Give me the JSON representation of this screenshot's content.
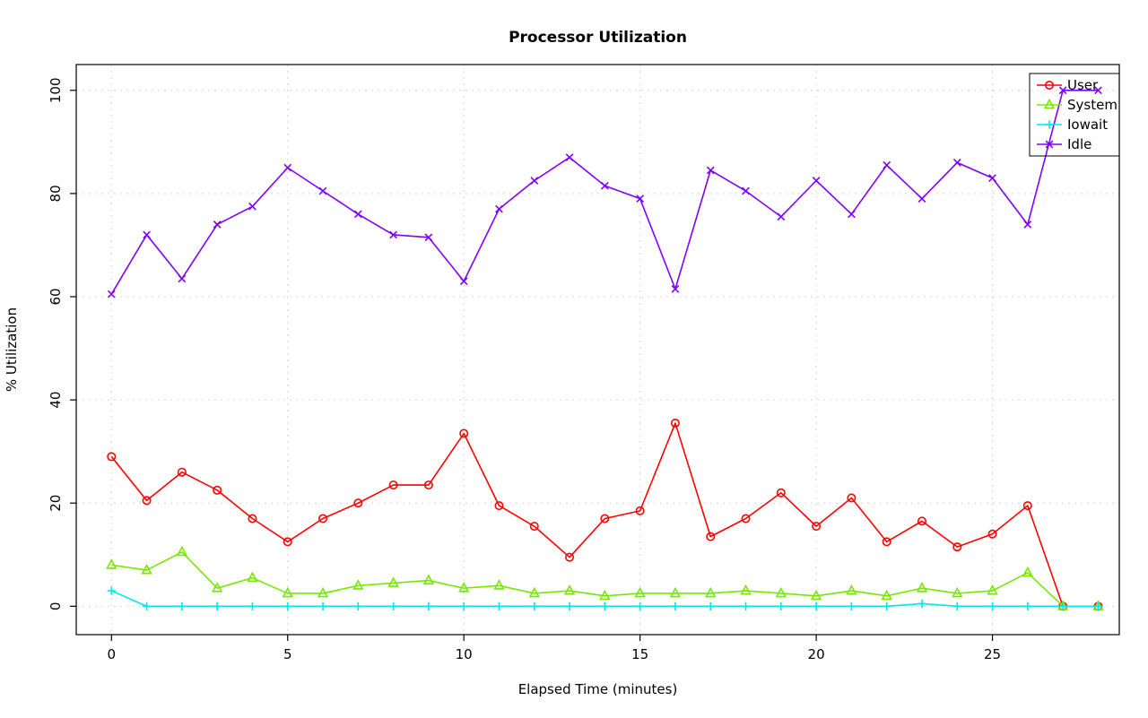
{
  "title": "Processor Utilization",
  "axes": {
    "x_label": "Elapsed Time (minutes)",
    "y_label": "% Utilization",
    "x_ticks": [
      0,
      5,
      10,
      15,
      20,
      25
    ],
    "y_ticks": [
      0,
      20,
      40,
      60,
      80,
      100
    ]
  },
  "legend": {
    "position": "top-right",
    "entries": [
      {
        "label": "User",
        "color": "#FF0000",
        "marker": "circle"
      },
      {
        "label": "System",
        "color": "#76E800",
        "marker": "triangle-up"
      },
      {
        "label": "Iowait",
        "color": "#00E5EE",
        "marker": "plus"
      },
      {
        "label": "Idle",
        "color": "#8000FF",
        "marker": "x"
      }
    ]
  },
  "chart_data": {
    "type": "line",
    "title": "Processor Utilization",
    "xlabel": "Elapsed Time (minutes)",
    "ylabel": "% Utilization",
    "xlim": [
      0,
      28
    ],
    "ylim": [
      0,
      100
    ],
    "grid": true,
    "legend_position": "top-right",
    "x": [
      0,
      1,
      2,
      3,
      4,
      5,
      6,
      7,
      8,
      9,
      10,
      11,
      12,
      13,
      14,
      15,
      16,
      17,
      18,
      19,
      20,
      21,
      22,
      23,
      24,
      25,
      26,
      27,
      28
    ],
    "series": [
      {
        "name": "User",
        "color": "#FF0000",
        "marker": "circle",
        "values": [
          29,
          20.5,
          26,
          22.5,
          17,
          12.5,
          17,
          20,
          23.5,
          23.5,
          33.5,
          19.5,
          15.5,
          9.5,
          17,
          18.5,
          35.5,
          13.5,
          17,
          22,
          15.5,
          21,
          12.5,
          16.5,
          11.5,
          14,
          19.5,
          0,
          0
        ]
      },
      {
        "name": "System",
        "color": "#76E800",
        "marker": "triangle-up",
        "values": [
          8,
          7,
          10.5,
          3.5,
          5.5,
          2.5,
          2.5,
          4,
          4.5,
          5,
          3.5,
          4,
          2.5,
          3,
          2,
          2.5,
          2.5,
          2.5,
          3,
          2.5,
          2,
          3,
          2,
          3.5,
          2.5,
          3,
          6.5,
          0,
          0
        ]
      },
      {
        "name": "Iowait",
        "color": "#00E5EE",
        "marker": "plus",
        "values": [
          3,
          0,
          0,
          0,
          0,
          0,
          0,
          0,
          0,
          0,
          0,
          0,
          0,
          0,
          0,
          0,
          0,
          0,
          0,
          0,
          0,
          0,
          0,
          0.5,
          0,
          0,
          0,
          0,
          0
        ]
      },
      {
        "name": "Idle",
        "color": "#8000FF",
        "marker": "x",
        "values": [
          60.5,
          72,
          63.5,
          74,
          77.5,
          85,
          80.5,
          76,
          72,
          71.5,
          63,
          77,
          82.5,
          87,
          81.5,
          79,
          61.5,
          84.5,
          80.5,
          75.5,
          82.5,
          76,
          85.5,
          79,
          86,
          83,
          74,
          100,
          100
        ]
      }
    ]
  }
}
